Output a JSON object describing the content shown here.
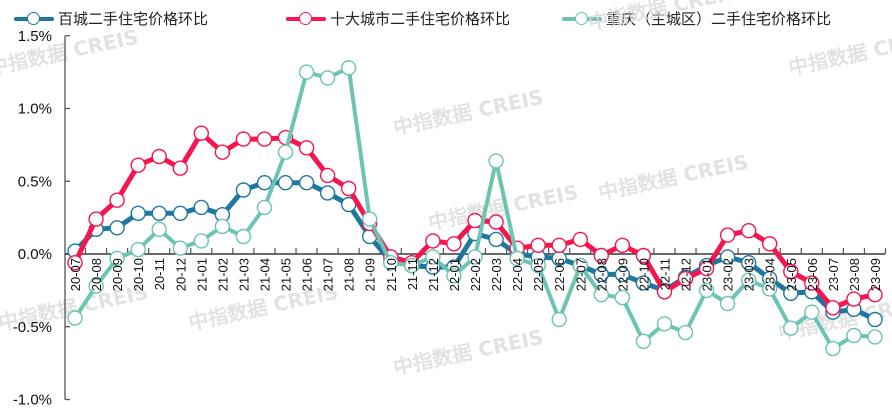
{
  "chart_data": {
    "type": "line",
    "title": "",
    "xlabel": "",
    "ylabel": "",
    "ylim": [
      -1.0,
      1.5
    ],
    "yticks": [
      "1.5%",
      "1.0%",
      "0.5%",
      "0.0%",
      "-0.5%",
      "-1.0%"
    ],
    "ytick_values": [
      1.5,
      1.0,
      0.5,
      0.0,
      -0.5,
      -1.0
    ],
    "grid": false,
    "legend_position": "top",
    "categories": [
      "20-07",
      "20-08",
      "20-09",
      "20-10",
      "20-11",
      "20-12",
      "21-01",
      "21-02",
      "21-03",
      "21-04",
      "21-05",
      "21-06",
      "21-07",
      "21-08",
      "21-09",
      "21-10",
      "21-11",
      "21-12",
      "22-01",
      "22-02",
      "22-03",
      "22-04",
      "22-05",
      "22-06",
      "22-07",
      "22-08",
      "22-09",
      "22-10",
      "22-11",
      "22-12",
      "23-01",
      "23-02",
      "23-03",
      "23-04",
      "23-05",
      "23-06",
      "23-07",
      "23-08",
      "23-09"
    ],
    "series": [
      {
        "name": "百城二手住宅价格环比",
        "color": "#1F77A0",
        "values": [
          0.02,
          0.17,
          0.18,
          0.28,
          0.28,
          0.28,
          0.32,
          0.27,
          0.44,
          0.49,
          0.49,
          0.49,
          0.42,
          0.34,
          0.12,
          -0.05,
          -0.08,
          -0.09,
          -0.09,
          0.14,
          0.1,
          0.0,
          -0.02,
          -0.03,
          -0.08,
          -0.14,
          -0.14,
          -0.2,
          -0.25,
          -0.16,
          -0.08,
          -0.02,
          -0.06,
          -0.17,
          -0.27,
          -0.26,
          -0.4,
          -0.38,
          -0.45
        ]
      },
      {
        "name": "十大城市二手住宅价格环比",
        "color": "#F5154F",
        "values": [
          -0.06,
          0.24,
          0.37,
          0.61,
          0.67,
          0.59,
          0.83,
          0.7,
          0.79,
          0.79,
          0.8,
          0.73,
          0.54,
          0.45,
          0.21,
          -0.02,
          -0.06,
          0.09,
          0.07,
          0.23,
          0.22,
          0.04,
          0.06,
          0.06,
          0.1,
          -0.01,
          0.06,
          -0.01,
          -0.26,
          -0.17,
          -0.1,
          0.13,
          0.16,
          0.07,
          -0.12,
          -0.2,
          -0.37,
          -0.31,
          -0.28
        ]
      },
      {
        "name": "重庆（主城区）二手住宅价格环比",
        "color": "#6CC4B2",
        "values": [
          -0.44,
          -0.22,
          -0.03,
          0.03,
          0.17,
          0.04,
          0.09,
          0.19,
          0.12,
          0.32,
          0.7,
          1.25,
          1.21,
          1.28,
          0.24,
          -0.06,
          -0.08,
          -0.02,
          -0.15,
          -0.02,
          0.64,
          -0.03,
          -0.08,
          -0.45,
          -0.08,
          -0.28,
          -0.3,
          -0.6,
          -0.48,
          -0.54,
          -0.25,
          -0.34,
          -0.18,
          -0.24,
          -0.51,
          -0.4,
          -0.65,
          -0.56,
          -0.57
        ]
      }
    ],
    "watermark": "中指数据 CREIS"
  },
  "legend": [
    {
      "label": "百城二手住宅价格环比",
      "color": "#1F77A0"
    },
    {
      "label": "十大城市二手住宅价格环比",
      "color": "#F5154F"
    },
    {
      "label": "重庆（主城区）二手住宅价格环比",
      "color": "#6CC4B2"
    }
  ]
}
